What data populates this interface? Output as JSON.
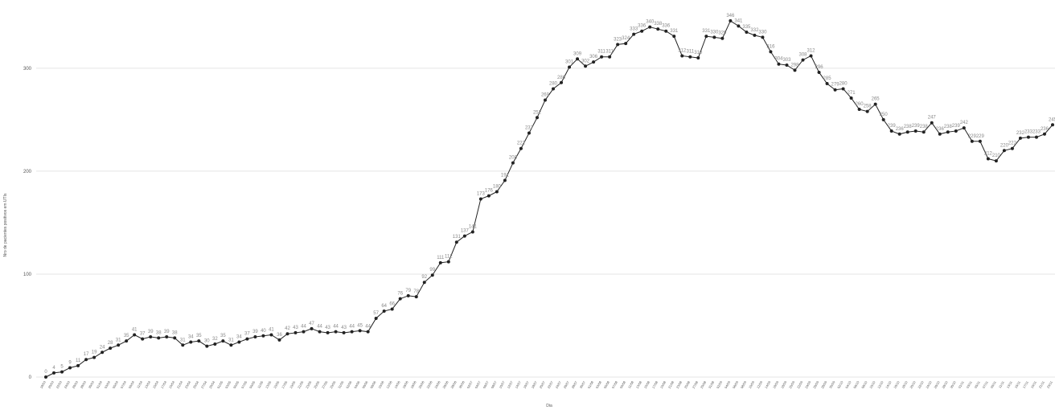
{
  "chart_data": {
    "type": "line",
    "y_label": "Nro de pacientes positivos em UTIs",
    "x_label": "Dia",
    "color": "#222222",
    "label_color": "#888888",
    "grid": true,
    "ylim": [
      0,
      360
    ],
    "yticks": [
      0,
      100,
      200,
      300
    ],
    "categories": [
      "18/03",
      "20/03",
      "22/03",
      "24/03",
      "26/03",
      "28/03",
      "30/03",
      "01/04",
      "03/04",
      "05/04",
      "07/04",
      "09/04",
      "11/04",
      "13/04",
      "15/04",
      "17/04",
      "19/04",
      "21/04",
      "23/04",
      "25/04",
      "27/04",
      "29/04",
      "01/05",
      "03/05",
      "05/05",
      "07/05",
      "09/05",
      "11/05",
      "13/05",
      "15/05",
      "17/05",
      "19/05",
      "21/05",
      "23/05",
      "25/05",
      "27/05",
      "29/05",
      "31/05",
      "02/06",
      "04/06",
      "06/06",
      "08/06",
      "10/06",
      "12/06",
      "14/06",
      "16/06",
      "18/06",
      "20/06",
      "22/06",
      "24/06",
      "26/06",
      "28/06",
      "30/06",
      "02/07",
      "04/07",
      "06/07",
      "08/07",
      "10/07",
      "12/07",
      "14/07",
      "16/07",
      "18/07",
      "20/07",
      "22/07",
      "24/07",
      "26/07",
      "28/07",
      "30/07",
      "01/08",
      "03/08",
      "05/08",
      "07/08",
      "09/08",
      "11/08",
      "13/08",
      "15/08",
      "17/08",
      "19/08",
      "21/08",
      "23/08",
      "25/08",
      "27/08",
      "29/08",
      "31/08",
      "02/09",
      "04/09",
      "06/09",
      "08/09",
      "10/09",
      "12/09",
      "14/09",
      "16/09",
      "18/09",
      "20/09",
      "22/09",
      "24/09",
      "26/09",
      "28/09",
      "30/09",
      "02/10",
      "04/10",
      "06/10",
      "08/10",
      "10/10",
      "12/10",
      "14/10",
      "16/10",
      "18/10",
      "20/10",
      "22/10",
      "24/10",
      "26/10",
      "28/10",
      "30/10",
      "01/11",
      "03/11",
      "05/11",
      "07/11",
      "09/11",
      "11/11",
      "13/11",
      "15/11",
      "17/11",
      "19/11",
      "21/11",
      "23/11"
    ],
    "series": [
      {
        "name": "UTI",
        "color": "#222222",
        "values": [
          0,
          4,
          5,
          9,
          11,
          17,
          19,
          24,
          28,
          31,
          35,
          41,
          37,
          39,
          38,
          39,
          38,
          31,
          34,
          35,
          30,
          32,
          35,
          31,
          34,
          37,
          39,
          40,
          41,
          36,
          42,
          43,
          44,
          47,
          44,
          43,
          44,
          43,
          44,
          45,
          44,
          57,
          64,
          66,
          76,
          79,
          78,
          92,
          99,
          111,
          112,
          131,
          137,
          141,
          173,
          176,
          180,
          191,
          208,
          222,
          237,
          252,
          269,
          280,
          286,
          301,
          309,
          302,
          306,
          311,
          311,
          323,
          324,
          333,
          336,
          340,
          338,
          336,
          331,
          312,
          311,
          310,
          331,
          330,
          329,
          346,
          341,
          335,
          332,
          330,
          316,
          304,
          303,
          298,
          308,
          312,
          296,
          285,
          279,
          280,
          271,
          260,
          258,
          265,
          250,
          239,
          236,
          238,
          239,
          238,
          247,
          236,
          238,
          239,
          242,
          229,
          229,
          212,
          210,
          220,
          222,
          232,
          233,
          233,
          236,
          245
        ]
      }
    ]
  }
}
